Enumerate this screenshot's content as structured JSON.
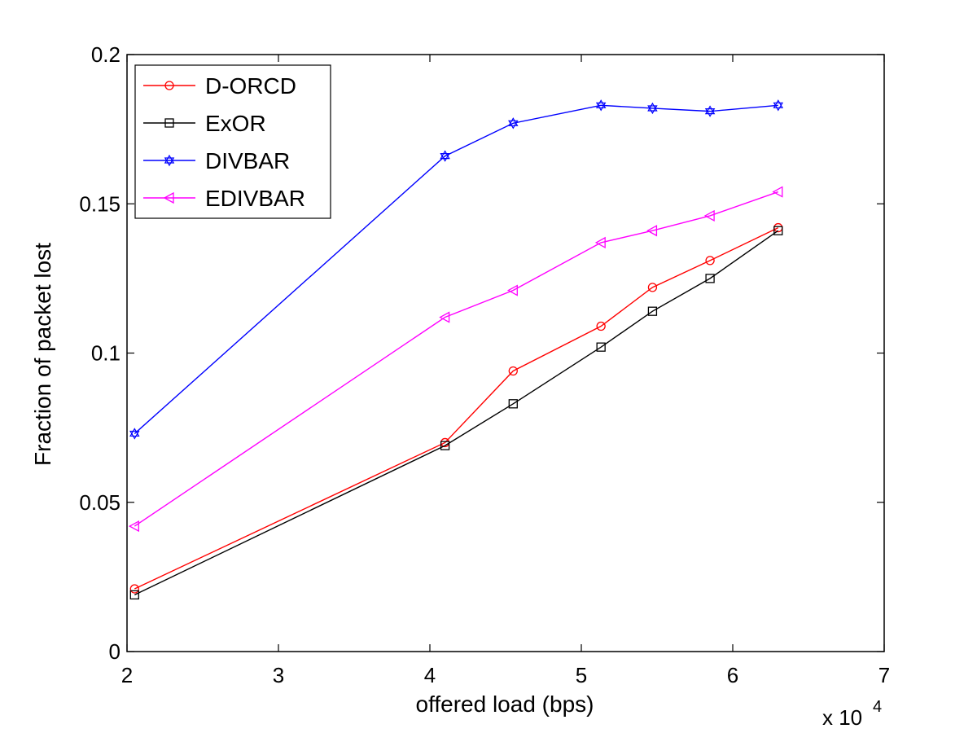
{
  "chart_data": {
    "type": "line",
    "xlabel": "offered load (bps)",
    "ylabel": "Fraction of packet lost",
    "x_multiplier_base": "x 10",
    "x_multiplier_exp": "4",
    "xlim": [
      2,
      7
    ],
    "ylim": [
      0,
      0.2
    ],
    "xticks": [
      "2",
      "3",
      "4",
      "5",
      "6",
      "7"
    ],
    "yticks": [
      "0",
      "0.05",
      "0.1",
      "0.15",
      "0.2"
    ],
    "grid": false,
    "legend_position": "top-left",
    "series": [
      {
        "name": "D-ORCD",
        "color": "#ff0000",
        "marker": "circle",
        "x": [
          2.05,
          4.1,
          4.55,
          5.13,
          5.47,
          5.85,
          6.3
        ],
        "y": [
          0.021,
          0.07,
          0.094,
          0.109,
          0.122,
          0.131,
          0.142
        ]
      },
      {
        "name": "ExOR",
        "color": "#000000",
        "marker": "square",
        "x": [
          2.05,
          4.1,
          4.55,
          5.13,
          5.47,
          5.85,
          6.3
        ],
        "y": [
          0.019,
          0.069,
          0.083,
          0.102,
          0.114,
          0.125,
          0.141
        ]
      },
      {
        "name": "DIVBAR",
        "color": "#0000ff",
        "marker": "hexagram",
        "x": [
          2.05,
          4.1,
          4.55,
          5.13,
          5.47,
          5.85,
          6.3
        ],
        "y": [
          0.073,
          0.166,
          0.177,
          0.183,
          0.182,
          0.181,
          0.183
        ]
      },
      {
        "name": "EDIVBAR",
        "color": "#ff00ff",
        "marker": "triangle-left",
        "x": [
          2.05,
          4.1,
          4.55,
          5.13,
          5.47,
          5.85,
          6.3
        ],
        "y": [
          0.042,
          0.112,
          0.121,
          0.137,
          0.141,
          0.146,
          0.154
        ]
      }
    ]
  }
}
